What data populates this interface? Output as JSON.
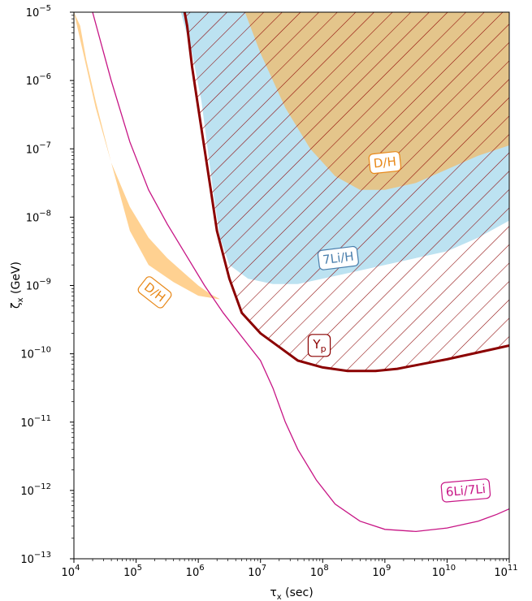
{
  "chart_data": {
    "type": "area",
    "title": "",
    "xlabel": {
      "symbol": "τ",
      "sub": "x",
      "rest": " (sec)"
    },
    "ylabel": {
      "symbol": "ζ",
      "sub": "x",
      "rest": " (GeV)"
    },
    "xscale": "log",
    "yscale": "log",
    "xlim_exp": [
      4,
      11
    ],
    "ylim_exp": [
      -13,
      -5
    ],
    "xticks": [
      {
        "base": "10",
        "exp": "4"
      },
      {
        "base": "10",
        "exp": "5"
      },
      {
        "base": "10",
        "exp": "6"
      },
      {
        "base": "10",
        "exp": "7"
      },
      {
        "base": "10",
        "exp": "8"
      },
      {
        "base": "10",
        "exp": "9"
      },
      {
        "base": "10",
        "exp": "10"
      },
      {
        "base": "10",
        "exp": "11"
      }
    ],
    "yticks": [
      {
        "base": "10",
        "exp": "−13"
      },
      {
        "base": "10",
        "exp": "−12"
      },
      {
        "base": "10",
        "exp": "−11"
      },
      {
        "base": "10",
        "exp": "−10"
      },
      {
        "base": "10",
        "exp": "−9"
      },
      {
        "base": "10",
        "exp": "−8"
      },
      {
        "base": "10",
        "exp": "−7"
      },
      {
        "base": "10",
        "exp": "−6"
      },
      {
        "base": "10",
        "exp": "−5"
      }
    ],
    "colors": {
      "dh": "#ffb347",
      "li7": "#a6d8ec",
      "yp": "#8b0000",
      "li6": "#c71585",
      "dh_label": "#e8891a",
      "li7_label": "#4a7fad"
    },
    "regions": {
      "dh_low": {
        "log_tau": [
          4.0,
          4.15,
          4.35,
          4.6,
          4.9,
          5.2,
          5.5,
          5.75,
          6.0,
          6.2,
          6.35,
          6.45,
          6.45,
          6.32,
          6.0,
          5.6,
          5.2,
          4.9,
          4.6,
          4.35,
          4.2,
          4.1,
          4.0
        ],
        "log_zeta": [
          -5.0,
          -5.6,
          -6.4,
          -7.2,
          -7.85,
          -8.3,
          -8.6,
          -8.8,
          -9.0,
          -9.13,
          -9.2,
          -9.2,
          -9.2,
          -9.2,
          -9.15,
          -8.95,
          -8.7,
          -8.2,
          -7.2,
          -6.3,
          -5.7,
          -5.2,
          -5.0
        ]
      },
      "dh_high": {
        "log_tau": [
          6.75,
          7.0,
          7.4,
          7.8,
          8.2,
          8.6,
          9.0,
          9.5,
          10.0,
          10.5,
          11.0,
          11.0,
          6.75
        ],
        "log_zeta": [
          -5.0,
          -5.6,
          -6.4,
          -7.0,
          -7.4,
          -7.6,
          -7.6,
          -7.5,
          -7.3,
          -7.1,
          -6.95,
          -5.0,
          -5.0
        ]
      },
      "li7": {
        "log_tau": [
          5.72,
          5.9,
          6.05,
          6.15,
          6.25,
          6.35,
          6.5,
          6.8,
          7.2,
          7.6,
          8.0,
          8.5,
          9.0,
          9.5,
          10.0,
          10.5,
          11.0,
          11.0,
          5.72
        ],
        "log_zeta": [
          -5.0,
          -5.6,
          -6.3,
          -7.0,
          -7.7,
          -8.3,
          -8.7,
          -8.9,
          -8.98,
          -8.98,
          -8.9,
          -8.8,
          -8.7,
          -8.6,
          -8.5,
          -8.3,
          -8.05,
          -5.0,
          -5.0
        ]
      },
      "yp": {
        "log_tau": [
          5.78,
          5.82,
          5.9,
          6.0,
          6.1,
          6.2,
          6.3,
          6.5,
          6.7,
          7.0,
          7.3,
          7.6,
          8.0,
          8.4,
          8.85,
          9.2,
          9.6,
          10.0,
          10.4,
          10.8,
          11.0,
          11.0,
          5.78
        ],
        "log_zeta": [
          -5.0,
          -5.2,
          -5.8,
          -6.4,
          -7.0,
          -7.6,
          -8.2,
          -8.9,
          -9.4,
          -9.7,
          -9.9,
          -10.1,
          -10.2,
          -10.25,
          -10.25,
          -10.22,
          -10.15,
          -10.08,
          -10.0,
          -9.92,
          -9.88,
          -5.0,
          -5.0
        ]
      },
      "li6": {
        "log_tau": [
          4.3,
          4.6,
          4.9,
          5.2,
          5.5,
          5.8,
          6.1,
          6.4,
          6.7,
          7.0,
          7.2,
          7.4,
          7.6,
          7.9,
          8.2,
          8.6,
          9.0,
          9.5,
          10.0,
          10.5,
          10.8,
          11.0
        ],
        "log_zeta": [
          -5.0,
          -6.0,
          -6.9,
          -7.6,
          -8.1,
          -8.55,
          -9.0,
          -9.4,
          -9.75,
          -10.1,
          -10.5,
          -11.0,
          -11.4,
          -11.85,
          -12.2,
          -12.45,
          -12.57,
          -12.6,
          -12.55,
          -12.45,
          -12.35,
          -12.27
        ]
      }
    },
    "annotations": [
      {
        "key": "dh_high",
        "text": "D/H",
        "at": [
          9.0,
          -7.2
        ],
        "angle": -6
      },
      {
        "key": "dh_low",
        "text": "D/H",
        "at": [
          5.3,
          -9.1
        ],
        "angle": 38
      },
      {
        "key": "li7",
        "text": "7Li/H",
        "at": [
          8.25,
          -8.6
        ],
        "angle": -7
      },
      {
        "key": "yp",
        "text": "Y",
        "sub": "p",
        "at": [
          7.95,
          -9.86
        ],
        "angle": 0
      },
      {
        "key": "li6",
        "text": "6Li/7Li",
        "at": [
          10.3,
          -12.0
        ],
        "angle": -5
      }
    ]
  }
}
